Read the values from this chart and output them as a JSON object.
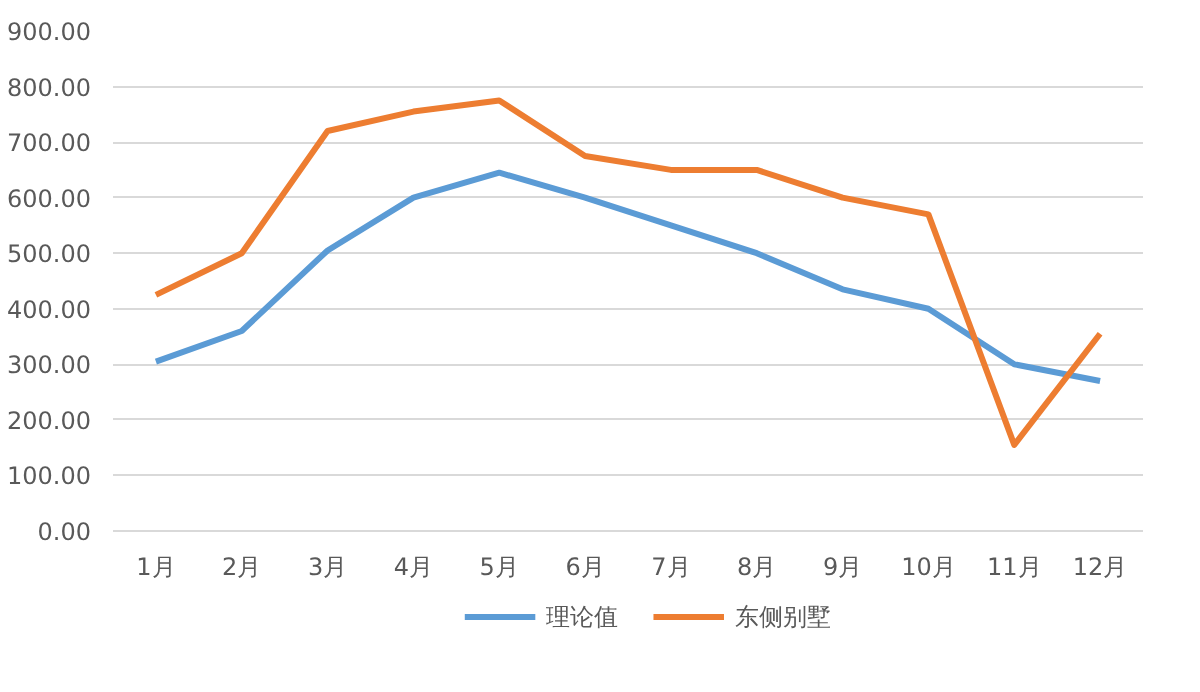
{
  "chart_data": {
    "type": "line",
    "categories": [
      "1月",
      "2月",
      "3月",
      "4月",
      "5月",
      "6月",
      "7月",
      "8月",
      "9月",
      "10月",
      "11月",
      "12月"
    ],
    "series": [
      {
        "name": "理论值",
        "color": "#5b9bd5",
        "values": [
          305,
          360,
          505,
          600,
          645,
          600,
          550,
          500,
          435,
          400,
          300,
          270
        ]
      },
      {
        "name": "东侧别墅",
        "color": "#ed7d31",
        "values": [
          425,
          500,
          720,
          755,
          775,
          675,
          650,
          650,
          600,
          570,
          155,
          355
        ]
      }
    ],
    "ylim": [
      0,
      900
    ],
    "yticks": [
      {
        "value": 0,
        "label": "0.00"
      },
      {
        "value": 100,
        "label": "100.00"
      },
      {
        "value": 200,
        "label": "200.00"
      },
      {
        "value": 300,
        "label": "300.00"
      },
      {
        "value": 400,
        "label": "400.00"
      },
      {
        "value": 500,
        "label": "500.00"
      },
      {
        "value": 600,
        "label": "600.00"
      },
      {
        "value": 700,
        "label": "700.00"
      },
      {
        "value": 800,
        "label": "800.00"
      },
      {
        "value": 900,
        "label": "900.00"
      }
    ],
    "grid": "y",
    "legend": "bottom",
    "marker": "none",
    "line_style": "solid"
  }
}
